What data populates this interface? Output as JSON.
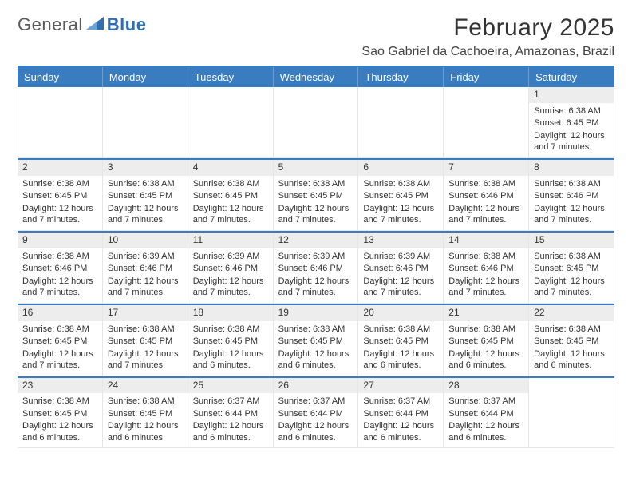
{
  "brand": {
    "word1": "General",
    "word2": "Blue"
  },
  "title": "February 2025",
  "location": "Sao Gabriel da Cachoeira, Amazonas, Brazil",
  "theme": {
    "accent": "#3a7cc0",
    "daynum_bg": "#ededed",
    "text": "#333333",
    "logo_gray": "#5a5a5a",
    "logo_blue": "#2f6fb0",
    "background": "#ffffff"
  },
  "dow": [
    "Sunday",
    "Monday",
    "Tuesday",
    "Wednesday",
    "Thursday",
    "Friday",
    "Saturday"
  ],
  "weeks": [
    [
      null,
      null,
      null,
      null,
      null,
      null,
      {
        "n": "1",
        "sunrise": "Sunrise: 6:38 AM",
        "sunset": "Sunset: 6:45 PM",
        "daylight": "Daylight: 12 hours and 7 minutes."
      }
    ],
    [
      {
        "n": "2",
        "sunrise": "Sunrise: 6:38 AM",
        "sunset": "Sunset: 6:45 PM",
        "daylight": "Daylight: 12 hours and 7 minutes."
      },
      {
        "n": "3",
        "sunrise": "Sunrise: 6:38 AM",
        "sunset": "Sunset: 6:45 PM",
        "daylight": "Daylight: 12 hours and 7 minutes."
      },
      {
        "n": "4",
        "sunrise": "Sunrise: 6:38 AM",
        "sunset": "Sunset: 6:45 PM",
        "daylight": "Daylight: 12 hours and 7 minutes."
      },
      {
        "n": "5",
        "sunrise": "Sunrise: 6:38 AM",
        "sunset": "Sunset: 6:45 PM",
        "daylight": "Daylight: 12 hours and 7 minutes."
      },
      {
        "n": "6",
        "sunrise": "Sunrise: 6:38 AM",
        "sunset": "Sunset: 6:45 PM",
        "daylight": "Daylight: 12 hours and 7 minutes."
      },
      {
        "n": "7",
        "sunrise": "Sunrise: 6:38 AM",
        "sunset": "Sunset: 6:46 PM",
        "daylight": "Daylight: 12 hours and 7 minutes."
      },
      {
        "n": "8",
        "sunrise": "Sunrise: 6:38 AM",
        "sunset": "Sunset: 6:46 PM",
        "daylight": "Daylight: 12 hours and 7 minutes."
      }
    ],
    [
      {
        "n": "9",
        "sunrise": "Sunrise: 6:38 AM",
        "sunset": "Sunset: 6:46 PM",
        "daylight": "Daylight: 12 hours and 7 minutes."
      },
      {
        "n": "10",
        "sunrise": "Sunrise: 6:39 AM",
        "sunset": "Sunset: 6:46 PM",
        "daylight": "Daylight: 12 hours and 7 minutes."
      },
      {
        "n": "11",
        "sunrise": "Sunrise: 6:39 AM",
        "sunset": "Sunset: 6:46 PM",
        "daylight": "Daylight: 12 hours and 7 minutes."
      },
      {
        "n": "12",
        "sunrise": "Sunrise: 6:39 AM",
        "sunset": "Sunset: 6:46 PM",
        "daylight": "Daylight: 12 hours and 7 minutes."
      },
      {
        "n": "13",
        "sunrise": "Sunrise: 6:39 AM",
        "sunset": "Sunset: 6:46 PM",
        "daylight": "Daylight: 12 hours and 7 minutes."
      },
      {
        "n": "14",
        "sunrise": "Sunrise: 6:38 AM",
        "sunset": "Sunset: 6:46 PM",
        "daylight": "Daylight: 12 hours and 7 minutes."
      },
      {
        "n": "15",
        "sunrise": "Sunrise: 6:38 AM",
        "sunset": "Sunset: 6:45 PM",
        "daylight": "Daylight: 12 hours and 7 minutes."
      }
    ],
    [
      {
        "n": "16",
        "sunrise": "Sunrise: 6:38 AM",
        "sunset": "Sunset: 6:45 PM",
        "daylight": "Daylight: 12 hours and 7 minutes."
      },
      {
        "n": "17",
        "sunrise": "Sunrise: 6:38 AM",
        "sunset": "Sunset: 6:45 PM",
        "daylight": "Daylight: 12 hours and 7 minutes."
      },
      {
        "n": "18",
        "sunrise": "Sunrise: 6:38 AM",
        "sunset": "Sunset: 6:45 PM",
        "daylight": "Daylight: 12 hours and 6 minutes."
      },
      {
        "n": "19",
        "sunrise": "Sunrise: 6:38 AM",
        "sunset": "Sunset: 6:45 PM",
        "daylight": "Daylight: 12 hours and 6 minutes."
      },
      {
        "n": "20",
        "sunrise": "Sunrise: 6:38 AM",
        "sunset": "Sunset: 6:45 PM",
        "daylight": "Daylight: 12 hours and 6 minutes."
      },
      {
        "n": "21",
        "sunrise": "Sunrise: 6:38 AM",
        "sunset": "Sunset: 6:45 PM",
        "daylight": "Daylight: 12 hours and 6 minutes."
      },
      {
        "n": "22",
        "sunrise": "Sunrise: 6:38 AM",
        "sunset": "Sunset: 6:45 PM",
        "daylight": "Daylight: 12 hours and 6 minutes."
      }
    ],
    [
      {
        "n": "23",
        "sunrise": "Sunrise: 6:38 AM",
        "sunset": "Sunset: 6:45 PM",
        "daylight": "Daylight: 12 hours and 6 minutes."
      },
      {
        "n": "24",
        "sunrise": "Sunrise: 6:38 AM",
        "sunset": "Sunset: 6:45 PM",
        "daylight": "Daylight: 12 hours and 6 minutes."
      },
      {
        "n": "25",
        "sunrise": "Sunrise: 6:37 AM",
        "sunset": "Sunset: 6:44 PM",
        "daylight": "Daylight: 12 hours and 6 minutes."
      },
      {
        "n": "26",
        "sunrise": "Sunrise: 6:37 AM",
        "sunset": "Sunset: 6:44 PM",
        "daylight": "Daylight: 12 hours and 6 minutes."
      },
      {
        "n": "27",
        "sunrise": "Sunrise: 6:37 AM",
        "sunset": "Sunset: 6:44 PM",
        "daylight": "Daylight: 12 hours and 6 minutes."
      },
      {
        "n": "28",
        "sunrise": "Sunrise: 6:37 AM",
        "sunset": "Sunset: 6:44 PM",
        "daylight": "Daylight: 12 hours and 6 minutes."
      },
      null
    ]
  ]
}
